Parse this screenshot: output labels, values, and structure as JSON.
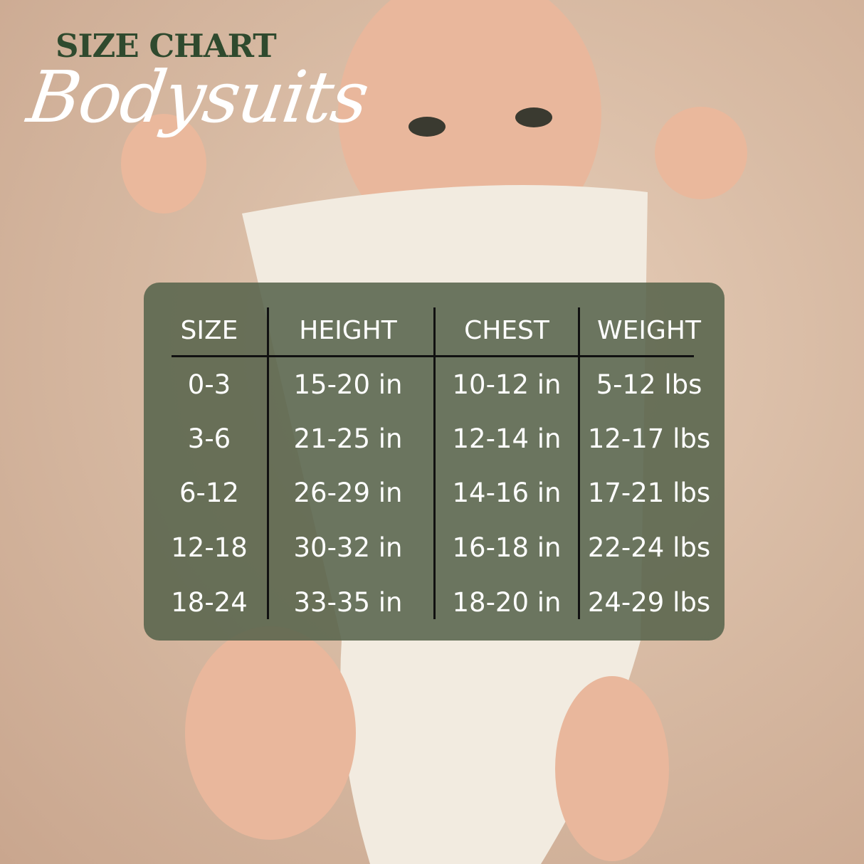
{
  "header": {
    "title": "SIZE CHART",
    "subtitle": "Bodysuits"
  },
  "colors": {
    "title": "#2f4a2e",
    "panel": "#58644c",
    "text": "#ffffff",
    "background": "#d8bba4"
  },
  "table": {
    "columns": [
      "SIZE",
      "HEIGHT",
      "CHEST",
      "WEIGHT"
    ],
    "rows": [
      [
        "0-3",
        "15-20 in",
        "10-12 in",
        "5-12 lbs"
      ],
      [
        "3-6",
        "21-25 in",
        "12-14 in",
        "12-17 lbs"
      ],
      [
        "6-12",
        "26-29 in",
        "14-16 in",
        "17-21 lbs"
      ],
      [
        "12-18",
        "30-32 in",
        "16-18 in",
        "22-24 lbs"
      ],
      [
        "18-24",
        "33-35 in",
        "18-20 in",
        "24-29 lbs"
      ]
    ]
  }
}
